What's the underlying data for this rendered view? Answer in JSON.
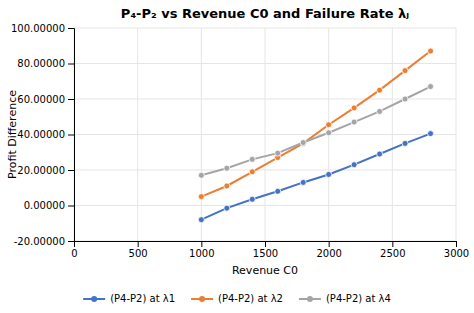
{
  "chart_data": {
    "type": "line",
    "title": "P₄-P₂ vs Revenue C0 and Failure Rate λⱼ",
    "x_label": "Revenue C0",
    "y_label": "Profit Difference",
    "x": [
      1000,
      1200,
      1400,
      1600,
      1800,
      2000,
      2200,
      2400,
      2600,
      2800
    ],
    "series": [
      {
        "name": "(P4-P2) at λ1",
        "color": "#4472C4",
        "marker": "circle",
        "line_style": "solid",
        "values": [
          -8.0,
          -1.5,
          3.5,
          8.0,
          13.0,
          17.5,
          23.0,
          29.0,
          35.0,
          40.5
        ]
      },
      {
        "name": "(P4-P2) at λ2",
        "color": "#ED7D31",
        "marker": "circle",
        "line_style": "solid",
        "values": [
          5.0,
          11.0,
          19.0,
          27.0,
          35.0,
          45.5,
          55.0,
          65.0,
          76.0,
          87.0
        ]
      },
      {
        "name": "(P4-P2) at λ4",
        "color": "#A5A5A5",
        "marker": "circle",
        "line_style": "solid",
        "values": [
          17.0,
          21.0,
          26.0,
          29.5,
          35.5,
          41.0,
          47.0,
          53.0,
          60.0,
          67.0
        ]
      }
    ],
    "xlim": [
      0,
      3000
    ],
    "ylim": [
      -20.0,
      100.0
    ],
    "xticks": [
      0,
      500,
      1000,
      1500,
      2000,
      2500,
      3000
    ],
    "yticks": [
      {
        "value": -20.0,
        "label": "-20.00000"
      },
      {
        "value": 0.0,
        "label": "0.00000"
      },
      {
        "value": 20.0,
        "label": "20.00000"
      },
      {
        "value": 40.0,
        "label": "40.00000"
      },
      {
        "value": 60.0,
        "label": "60.00000"
      },
      {
        "value": 80.0,
        "label": "80.00000"
      },
      {
        "value": 100.0,
        "label": "100.00000"
      }
    ],
    "grid": true,
    "legend": "bottom"
  }
}
